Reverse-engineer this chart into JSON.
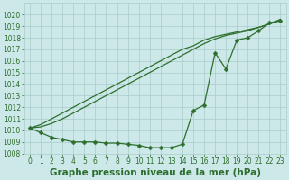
{
  "xlabel": "Graphe pression niveau de la mer (hPa)",
  "x": [
    0,
    1,
    2,
    3,
    4,
    5,
    6,
    7,
    8,
    9,
    10,
    11,
    12,
    13,
    14,
    15,
    16,
    17,
    18,
    19,
    20,
    21,
    22,
    23
  ],
  "y_marked": [
    1010.2,
    1009.8,
    1009.4,
    1009.2,
    1009.0,
    1009.0,
    1009.0,
    1008.9,
    1008.9,
    1008.8,
    1008.7,
    1008.5,
    1008.5,
    1008.5,
    1008.8,
    1011.7,
    1012.2,
    1016.7,
    1015.3,
    1017.8,
    1018.0,
    1018.6,
    1019.3,
    1019.5
  ],
  "y_upper1": [
    1010.2,
    1010.5,
    1011.0,
    1011.5,
    1012.0,
    1012.5,
    1013.0,
    1013.5,
    1014.0,
    1014.5,
    1015.0,
    1015.5,
    1016.0,
    1016.5,
    1017.0,
    1017.3,
    1017.8,
    1018.1,
    1018.3,
    1018.5,
    1018.7,
    1018.9,
    1019.2,
    1019.6
  ],
  "y_upper2": [
    1010.2,
    1010.3,
    1010.6,
    1011.0,
    1011.5,
    1012.0,
    1012.5,
    1013.0,
    1013.5,
    1014.0,
    1014.5,
    1015.0,
    1015.5,
    1016.0,
    1016.5,
    1017.0,
    1017.5,
    1017.9,
    1018.2,
    1018.4,
    1018.6,
    1018.9,
    1019.2,
    1019.5
  ],
  "bg_color": "#cce8e8",
  "grid_color": "#aacccc",
  "line_color": "#2d6e2d",
  "ylim_min": 1008,
  "ylim_max": 1021,
  "yticks": [
    1008,
    1009,
    1010,
    1011,
    1012,
    1013,
    1014,
    1015,
    1016,
    1017,
    1018,
    1019,
    1020
  ],
  "marker_size": 2.5,
  "linewidth": 0.9,
  "xlabel_fontsize": 7.5,
  "tick_fontsize": 5.5
}
